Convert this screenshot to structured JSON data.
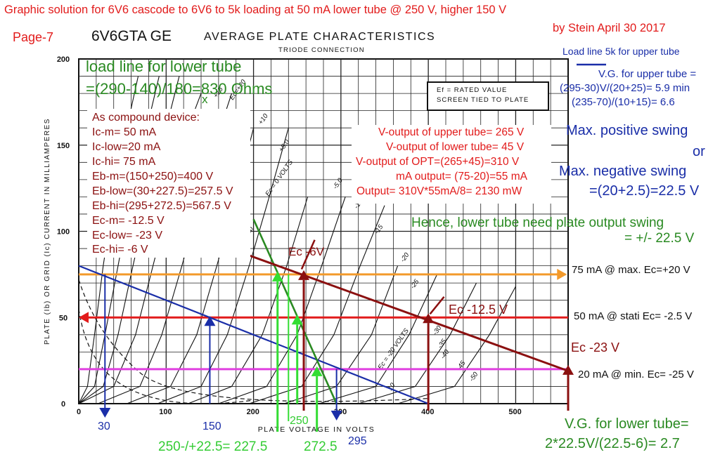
{
  "header": {
    "title_line": "Graphic solution for 6V6 cascode to 6V6 to 5k loading  at 50 mA lower tube @ 250 V, higher 150 V",
    "author_line": "by Stein   April 30 2017",
    "page": "Page-7",
    "tube": "6V6GTA GE",
    "chart_title": "AVERAGE PLATE CHARACTERISTICS",
    "chart_subtitle": "TRIODE CONNECTION"
  },
  "datasheet_box": {
    "line1": "Ef = RATED VALUE",
    "line2": "SCREEN TIED TO PLATE"
  },
  "notes": {
    "load_line_lower_1": "load line for lower tube",
    "load_line_lower_2": "=(290-140)/180=830 Ohms",
    "x_mark": "x",
    "load_line_upper": "Load line 5k for upper tube",
    "vg_upper_1": "V.G. for upper tube =",
    "vg_upper_2": "(295-30)V/(20+25)= 5.9 min",
    "vg_upper_3": "(235-70)/(10+15)= 6.6",
    "max_pos": "Max. positive swing",
    "or": "or",
    "max_neg": "Max. negative swing",
    "max_neg_val": "=(20+2.5)=22.5 V",
    "hence_1": "Hence, lower tube need plate output swing",
    "hence_2": "= +/- 22.5 V",
    "vg_lower_1": "V.G. for lower tube=",
    "vg_lower_2": "2*22.5V/(22.5-6)= 2.7"
  },
  "compound": {
    "title": "As compound device:",
    "items": [
      "Ic-m= 50 mA",
      "Ic-low=20 mA",
      "Ic-hi= 75 mA",
      "Eb-m=(150+250)=400 V",
      "Eb-low=(30+227.5)=257.5 V",
      "Eb-hi=(295+272.5)=567.5 V",
      "Ec-m= -12.5 V",
      "Ec-low= -23 V",
      "Ec-hi= -6 V"
    ]
  },
  "outputs": [
    "V-output of upper tube= 265 V",
    "V-output of lower tube= 45 V",
    "V-output of OPT=(265+45)=310 V",
    "mA output= (75-20)=55 mA",
    "Output= 310V*55mA/8= 2130 mW"
  ],
  "line_labels": {
    "l75": "75 mA @ max. Ec=+20 V",
    "l50": "50 mA @ stati Ec= -2.5 V",
    "l20": "20 mA @ min. Ec= -25 V",
    "ec6": "Ec -6V",
    "ec125": "Ec -12.5 V",
    "ec23": "Ec -23 V"
  },
  "bottom_labels": {
    "v30": "30",
    "v150": "150",
    "v250": "250",
    "v295": "295",
    "swing": "250-/+22.5= 227.5",
    "v2725": "272.5"
  },
  "axis": {
    "ylabel": "PLATE (Ib) OR GRID (Ic) CURRENT IN MILLIAMPERES",
    "xlabel": "PLATE VOLTAGE IN VOLTS",
    "curve_labels": [
      "+15",
      "+10",
      "+5.0",
      "Ec = 0 VOLTS",
      "-5.0",
      "-10",
      "-15",
      "-20",
      "-25",
      "-30",
      "-35",
      "-40",
      "-45",
      "-50",
      "Ec = -20 VOLTS",
      "10",
      "Ec=+20",
      "Ib"
    ]
  },
  "chart_data": {
    "type": "line",
    "title": "AVERAGE PLATE CHARACTERISTICS",
    "subtitle": "TRIODE CONNECTION",
    "xlabel": "PLATE VOLTAGE IN VOLTS",
    "ylabel": "PLATE (Ib) OR GRID (Ic) CURRENT IN MILLIAMPERES",
    "xlim": [
      0,
      560
    ],
    "ylim": [
      0,
      200
    ],
    "x_ticks": [
      0,
      100,
      200,
      300,
      400,
      500
    ],
    "y_ticks": [
      0,
      50,
      100,
      150,
      200
    ],
    "grid": true,
    "plate_curves": [
      {
        "ec": 15,
        "pts": [
          [
            0,
            0
          ],
          [
            10,
            10
          ],
          [
            18,
            40
          ],
          [
            28,
            80
          ],
          [
            40,
            120
          ],
          [
            55,
            160
          ],
          [
            68,
            190
          ]
        ]
      },
      {
        "ec": 10,
        "pts": [
          [
            0,
            0
          ],
          [
            18,
            10
          ],
          [
            30,
            40
          ],
          [
            45,
            80
          ],
          [
            60,
            120
          ],
          [
            78,
            160
          ],
          [
            92,
            190
          ]
        ]
      },
      {
        "ec": 5,
        "pts": [
          [
            0,
            0
          ],
          [
            28,
            10
          ],
          [
            45,
            40
          ],
          [
            62,
            80
          ],
          [
            80,
            120
          ],
          [
            100,
            160
          ],
          [
            115,
            190
          ]
        ]
      },
      {
        "ec": 0,
        "pts": [
          [
            0,
            0
          ],
          [
            40,
            10
          ],
          [
            65,
            40
          ],
          [
            85,
            80
          ],
          [
            105,
            120
          ],
          [
            125,
            160
          ],
          [
            140,
            180
          ]
        ]
      },
      {
        "ec": -5,
        "pts": [
          [
            22,
            0
          ],
          [
            70,
            10
          ],
          [
            95,
            40
          ],
          [
            118,
            80
          ],
          [
            140,
            120
          ],
          [
            162,
            160
          ],
          [
            175,
            180
          ]
        ]
      },
      {
        "ec": -10,
        "pts": [
          [
            55,
            0
          ],
          [
            105,
            10
          ],
          [
            135,
            40
          ],
          [
            158,
            80
          ],
          [
            180,
            120
          ],
          [
            200,
            160
          ]
        ]
      },
      {
        "ec": -15,
        "pts": [
          [
            90,
            0
          ],
          [
            140,
            10
          ],
          [
            170,
            40
          ],
          [
            195,
            80
          ],
          [
            218,
            120
          ],
          [
            240,
            160
          ]
        ]
      },
      {
        "ec": -20,
        "pts": [
          [
            125,
            0
          ],
          [
            175,
            10
          ],
          [
            210,
            40
          ],
          [
            238,
            80
          ],
          [
            262,
            120
          ]
        ]
      },
      {
        "ec": -25,
        "pts": [
          [
            160,
            0
          ],
          [
            215,
            10
          ],
          [
            250,
            40
          ],
          [
            278,
            80
          ],
          [
            305,
            120
          ]
        ]
      },
      {
        "ec": -30,
        "pts": [
          [
            195,
            0
          ],
          [
            255,
            10
          ],
          [
            292,
            40
          ],
          [
            322,
            80
          ],
          [
            350,
            115
          ]
        ]
      },
      {
        "ec": -35,
        "pts": [
          [
            235,
            0
          ],
          [
            295,
            10
          ],
          [
            335,
            40
          ],
          [
            365,
            80
          ]
        ]
      },
      {
        "ec": -40,
        "pts": [
          [
            275,
            0
          ],
          [
            340,
            10
          ],
          [
            378,
            40
          ],
          [
            410,
            75
          ]
        ]
      },
      {
        "ec": -45,
        "pts": [
          [
            320,
            0
          ],
          [
            385,
            10
          ],
          [
            425,
            40
          ],
          [
            455,
            70
          ]
        ]
      },
      {
        "ec": -50,
        "pts": [
          [
            365,
            0
          ],
          [
            430,
            10
          ],
          [
            470,
            40
          ],
          [
            500,
            68
          ]
        ]
      }
    ],
    "guides": [
      {
        "name": "75 mA @ max. Ec=+20 V",
        "color": "#f39a2b",
        "pts": [
          [
            0,
            75
          ],
          [
            560,
            75
          ]
        ]
      },
      {
        "name": "50 mA @ stati Ec= -2.5 V",
        "color": "#ee1c1c",
        "pts": [
          [
            0,
            50
          ],
          [
            560,
            50
          ]
        ]
      },
      {
        "name": "20 mA @ min. Ec= -25 V",
        "color": "#e040e0",
        "pts": [
          [
            0,
            20
          ],
          [
            560,
            20
          ]
        ]
      },
      {
        "name": "Load line 5k for upper tube",
        "color": "#1a2ea8",
        "pts": [
          [
            0,
            80
          ],
          [
            400,
            0
          ]
        ]
      },
      {
        "name": "load line for lower tube",
        "color": "#20882a",
        "pts": [
          [
            200,
            105
          ],
          [
            295,
            0
          ]
        ]
      },
      {
        "name": "Ec -12.5 V",
        "color": "#7a1010",
        "pts": [
          [
            200,
            85
          ],
          [
            560,
            20
          ]
        ]
      }
    ]
  },
  "colors": {
    "grid": "#222222",
    "red": "#e21b1b",
    "dred": "#8b1010",
    "blue": "#1a2ea8",
    "green": "#2a8a22",
    "lgreen": "#33dd33",
    "orange": "#f39a2b",
    "magenta": "#e040e0"
  }
}
